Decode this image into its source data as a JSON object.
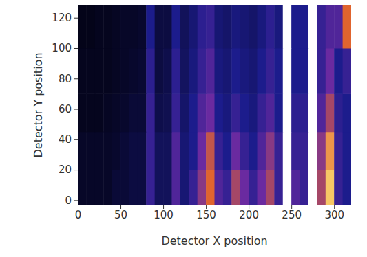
{
  "chart_data": {
    "type": "heatmap",
    "x_label": "Detector X position",
    "y_label": "Detector Y position",
    "xlim": [
      0,
      320
    ],
    "ylim": [
      -3,
      128
    ],
    "xticks": [
      0,
      50,
      100,
      150,
      200,
      250,
      300
    ],
    "yticks": [
      0,
      20,
      40,
      60,
      80,
      100,
      120
    ],
    "x_edges": [
      0,
      10,
      20,
      30,
      40,
      50,
      60,
      70,
      80,
      90,
      100,
      110,
      120,
      130,
      140,
      150,
      160,
      170,
      180,
      190,
      200,
      210,
      220,
      230,
      240,
      250,
      260,
      270,
      280,
      290,
      300,
      310,
      320
    ],
    "y_edges": [
      -3,
      20,
      45,
      70,
      100,
      128
    ],
    "cells": [
      [
        0.5,
        0.5,
        0.5,
        0.5,
        0.8,
        0.8,
        1,
        1,
        3,
        1.5,
        1.5,
        3.5,
        2,
        3,
        4.5,
        6,
        3.5,
        3,
        5,
        4,
        3,
        4,
        5,
        3,
        10,
        3.5,
        3,
        10,
        5,
        8,
        3,
        2.5
      ],
      [
        0.5,
        0.5,
        0.5,
        0.5,
        0.6,
        0.8,
        1,
        1,
        3,
        1.5,
        1.5,
        3.5,
        2,
        2.5,
        4,
        5.5,
        3,
        2.5,
        4,
        3,
        2.5,
        3.5,
        4.5,
        3,
        10,
        3,
        3,
        10,
        4.5,
        7,
        3,
        2.5
      ],
      [
        0.3,
        0.3,
        0.3,
        0.4,
        0.5,
        0.6,
        0.8,
        0.8,
        3,
        1.2,
        1.3,
        3,
        1.8,
        2.5,
        3.5,
        4,
        2.5,
        2.2,
        3,
        2.5,
        2.2,
        3,
        3.5,
        2.5,
        10,
        2.8,
        2.8,
        10,
        3.5,
        5,
        2.8,
        2.5
      ],
      [
        0.3,
        0.3,
        0.3,
        0.3,
        0.4,
        0.5,
        0.6,
        0.7,
        2.8,
        1,
        1.2,
        2.8,
        1.6,
        2.2,
        3,
        3.5,
        2.2,
        2,
        2.5,
        2.2,
        2,
        2.5,
        3,
        2.5,
        10,
        2.5,
        2.5,
        10,
        3,
        4,
        2.5,
        3
      ],
      [
        0.2,
        0.2,
        0.3,
        0.3,
        0.4,
        0.5,
        0.5,
        0.6,
        2.5,
        1,
        1,
        2.5,
        1.5,
        2,
        2.8,
        3,
        2,
        1.8,
        2.2,
        2,
        1.8,
        2.2,
        2.8,
        2.2,
        10,
        2.5,
        2.5,
        10,
        3,
        3.5,
        3.5,
        6
      ]
    ]
  }
}
